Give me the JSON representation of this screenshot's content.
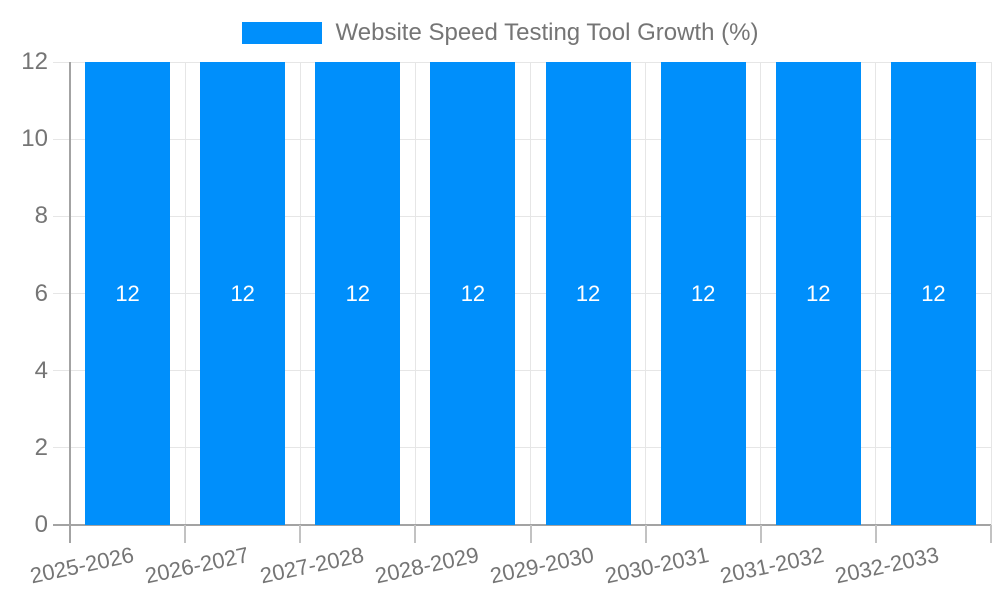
{
  "chart_data": {
    "type": "bar",
    "title": "",
    "legend": {
      "position": "top"
    },
    "series": [
      {
        "name": "Website Speed Testing Tool Growth (%)",
        "values": [
          12,
          12,
          12,
          12,
          12,
          12,
          12,
          12
        ],
        "color": "#008FFB"
      }
    ],
    "categories": [
      "2025-2026",
      "2026-2027",
      "2027-2028",
      "2028-2029",
      "2029-2030",
      "2030-2031",
      "2031-2032",
      "2032-2033"
    ],
    "bar_labels": [
      "12",
      "12",
      "12",
      "12",
      "12",
      "12",
      "12",
      "12"
    ],
    "xlabel": "",
    "ylabel": "",
    "ylim": [
      0,
      12
    ],
    "yticks": [
      "0",
      "2",
      "4",
      "6",
      "8",
      "10",
      "12"
    ],
    "grid": true,
    "colors": {
      "bar": "#008FFB",
      "grid_line": "#e6e6e6",
      "axis_line": "#a3a3a3",
      "tick_mark": "#c2c2c2",
      "tick_text": "#757575",
      "legend_text": "#757575",
      "bar_label_text": "#ffffff",
      "background": "#ffffff"
    }
  }
}
